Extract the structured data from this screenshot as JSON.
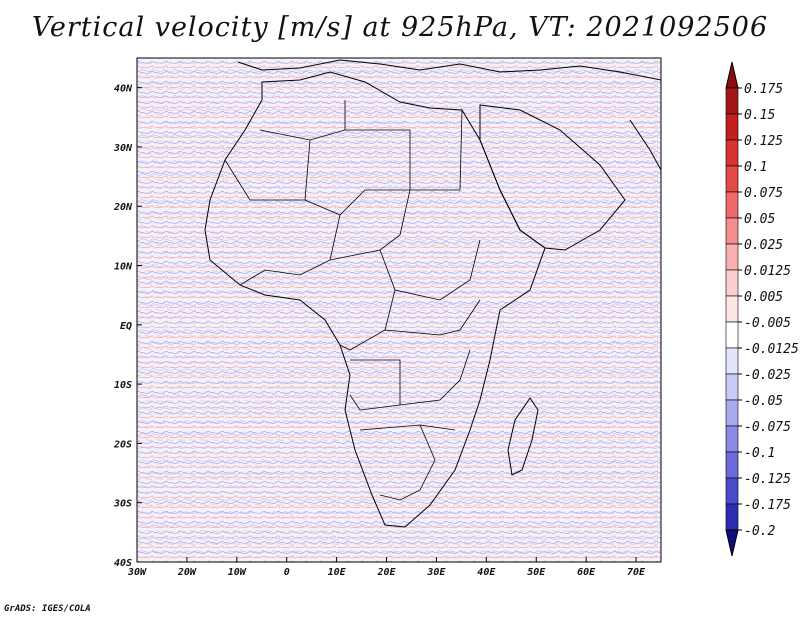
{
  "title": "Vertical velocity [m/s] at 925hPa, VT: 2021092506",
  "credit": "GrADS: IGES/COLA",
  "map": {
    "projection": "latlon",
    "lon_range": [
      -30,
      75
    ],
    "lat_range": [
      -40,
      45
    ],
    "lat_ticks": [
      {
        "value": 40,
        "label": "40N"
      },
      {
        "value": 30,
        "label": "30N"
      },
      {
        "value": 20,
        "label": "20N"
      },
      {
        "value": 10,
        "label": "10N"
      },
      {
        "value": 0,
        "label": "EQ"
      },
      {
        "value": -10,
        "label": "10S"
      },
      {
        "value": -20,
        "label": "20S"
      },
      {
        "value": -30,
        "label": "30S"
      },
      {
        "value": -40,
        "label": "40S"
      }
    ],
    "lon_ticks": [
      {
        "value": -30,
        "label": "30W"
      },
      {
        "value": -20,
        "label": "20W"
      },
      {
        "value": -10,
        "label": "10W"
      },
      {
        "value": 0,
        "label": "0"
      },
      {
        "value": 10,
        "label": "10E"
      },
      {
        "value": 20,
        "label": "20E"
      },
      {
        "value": 30,
        "label": "30E"
      },
      {
        "value": 40,
        "label": "40E"
      },
      {
        "value": 50,
        "label": "50E"
      },
      {
        "value": 60,
        "label": "60E"
      },
      {
        "value": 70,
        "label": "70E"
      }
    ]
  },
  "colorbar": {
    "levels": [
      {
        "label": "0.175",
        "color": "#a51515"
      },
      {
        "label": "0.15",
        "color": "#c21f1f"
      },
      {
        "label": "0.125",
        "color": "#d93333"
      },
      {
        "label": "0.1",
        "color": "#e54a4a"
      },
      {
        "label": "0.075",
        "color": "#ef6a6a"
      },
      {
        "label": "0.05",
        "color": "#f58d8d"
      },
      {
        "label": "0.025",
        "color": "#f9b0b0"
      },
      {
        "label": "0.0125",
        "color": "#fccfcf"
      },
      {
        "label": "0.005",
        "color": "#fee6e6"
      },
      {
        "label": "-0.005",
        "color": "#ffffff"
      },
      {
        "label": "-0.0125",
        "color": "#e4e4fb"
      },
      {
        "label": "-0.025",
        "color": "#c9c9f5"
      },
      {
        "label": "-0.05",
        "color": "#a9a9ee"
      },
      {
        "label": "-0.075",
        "color": "#8b8be6"
      },
      {
        "label": "-0.1",
        "color": "#6b6bdb"
      },
      {
        "label": "-0.125",
        "color": "#4b4bcc"
      },
      {
        "label": "-0.175",
        "color": "#2e2eb5"
      },
      {
        "label": "-0.2",
        "color": "#1a1a99"
      }
    ],
    "top_arrow_color": "#8c0d0d",
    "bottom_arrow_color": "#0f0f80"
  }
}
